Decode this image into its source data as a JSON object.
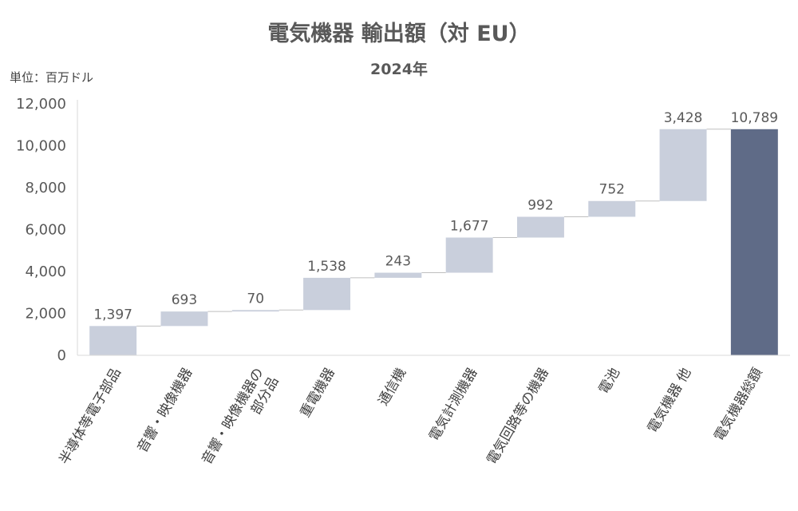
{
  "chart_data": {
    "type": "bar",
    "subtype": "waterfall",
    "title": "電気機器 輸出額（対 EU）",
    "subtitle": "2024年",
    "unit_label": "単位：百万ドル",
    "ylim": [
      0,
      12000
    ],
    "yticks": [
      "0",
      "2,000",
      "4,000",
      "6,000",
      "8,000",
      "10,000",
      "12,000"
    ],
    "ytick_values": [
      0,
      2000,
      4000,
      6000,
      8000,
      10000,
      12000
    ],
    "categories": [
      {
        "lines": [
          "半導体等電子部品"
        ]
      },
      {
        "lines": [
          "音響・映像機器"
        ]
      },
      {
        "lines": [
          "音響・映像機器の",
          "部分品"
        ]
      },
      {
        "lines": [
          "重電機器"
        ]
      },
      {
        "lines": [
          "通信機"
        ]
      },
      {
        "lines": [
          "電気計測機器"
        ]
      },
      {
        "lines": [
          "電気回路等の機器"
        ]
      },
      {
        "lines": [
          "電池"
        ]
      },
      {
        "lines": [
          "電気機器 他"
        ]
      },
      {
        "lines": [
          "電気機器総額"
        ]
      }
    ],
    "values": [
      1397,
      693,
      70,
      1538,
      243,
      1677,
      992,
      752,
      3428,
      10789
    ],
    "value_labels": [
      "1,397",
      "693",
      "70",
      "1,538",
      "243",
      "1,677",
      "992",
      "752",
      "3,428",
      "10,789"
    ],
    "total_index": 9,
    "colors": {
      "increment": "#c9cfdc",
      "total": "#5f6b87",
      "axis": "#d9d9d9",
      "connector": "#bfbfbf"
    },
    "grid": false,
    "legend": "none"
  }
}
